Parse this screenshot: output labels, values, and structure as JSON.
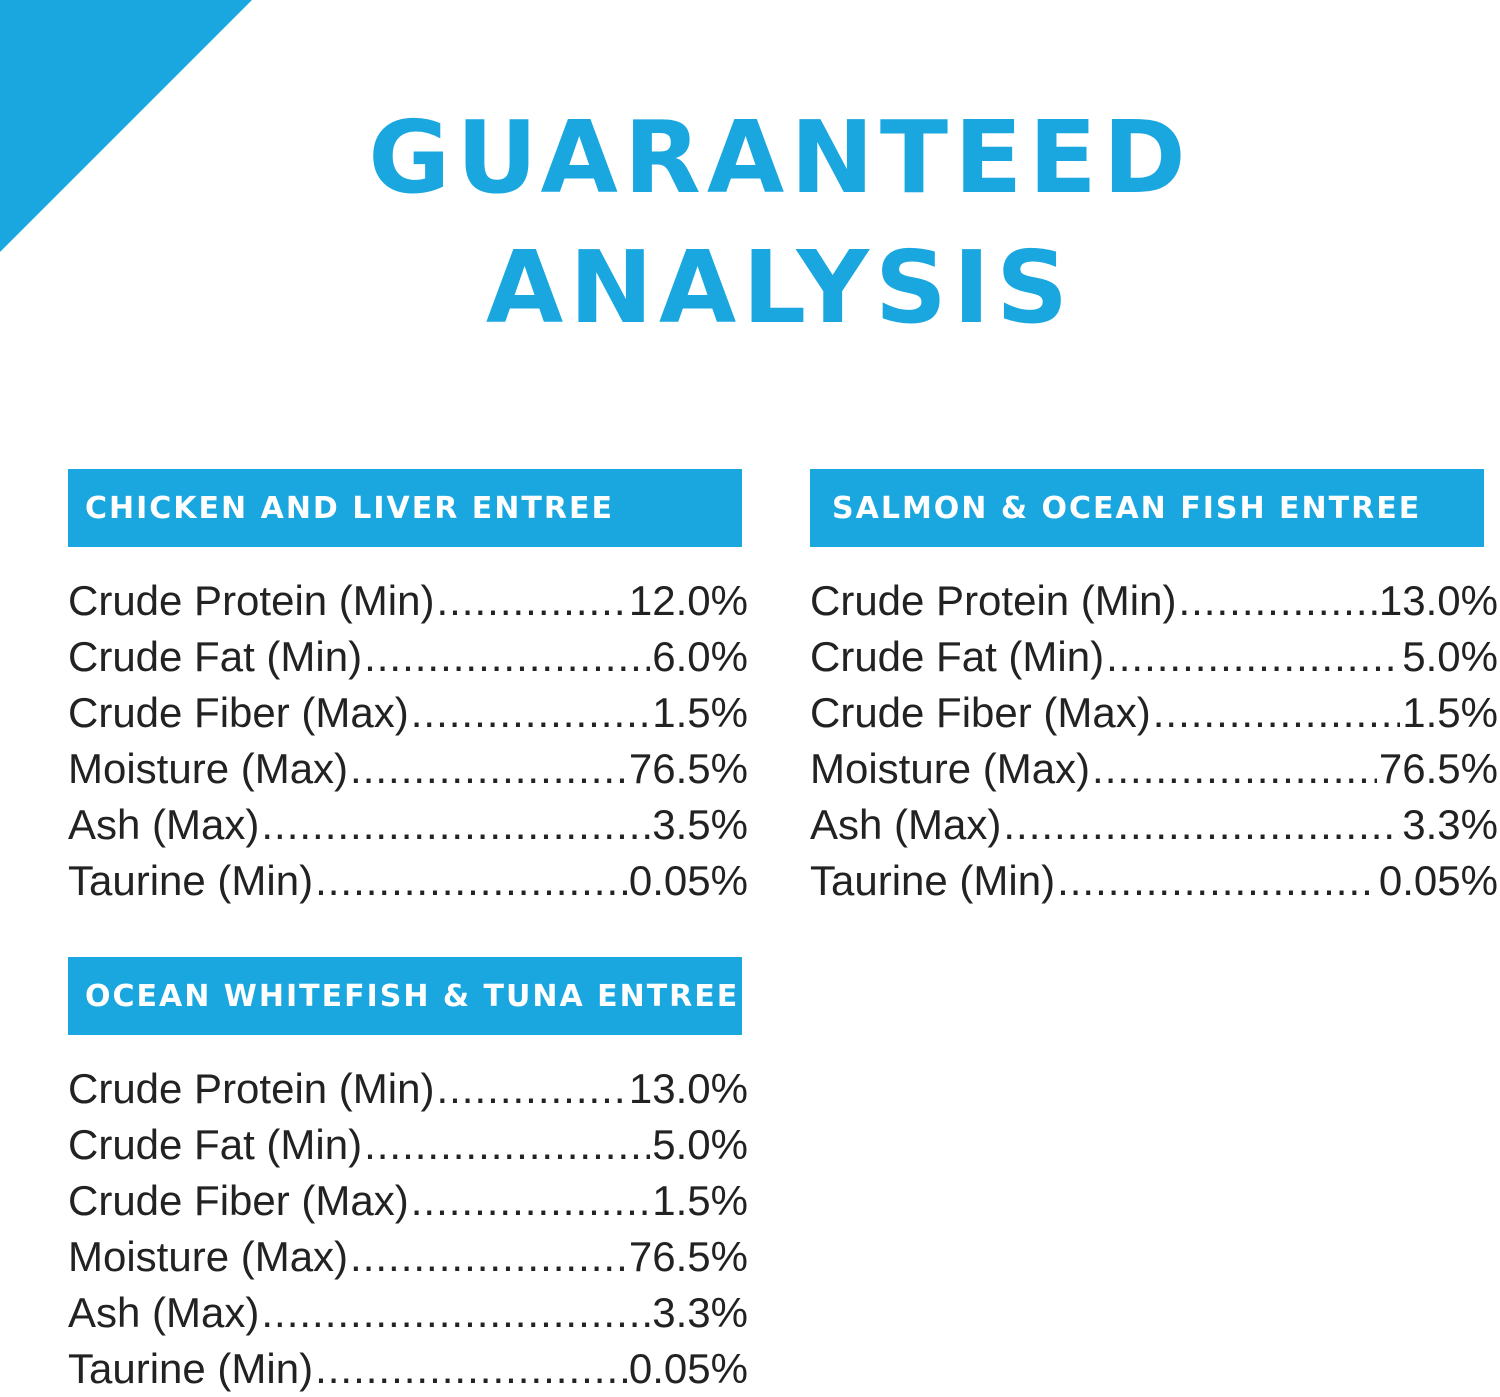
{
  "title": {
    "line1": "GUARANTEED",
    "line2": "ANALYSIS"
  },
  "sections": [
    {
      "heading": "CHICKEN AND LIVER ENTREE",
      "rows": [
        {
          "label": "Crude Protein (Min)",
          "value": "12.0%"
        },
        {
          "label": "Crude Fat (Min)",
          "value": "6.0%"
        },
        {
          "label": "Crude Fiber (Max)",
          "value": "1.5%"
        },
        {
          "label": "Moisture (Max)",
          "value": "76.5%"
        },
        {
          "label": "Ash (Max)",
          "value": "3.5%"
        },
        {
          "label": "Taurine (Min)",
          "value": "0.05%"
        }
      ]
    },
    {
      "heading": "SALMON & OCEAN FISH ENTREE",
      "rows": [
        {
          "label": "Crude Protein (Min)",
          "value": "13.0%"
        },
        {
          "label": "Crude Fat (Min)",
          "value": "5.0%"
        },
        {
          "label": "Crude Fiber (Max)",
          "value": "1.5%"
        },
        {
          "label": "Moisture (Max)",
          "value": "76.5%"
        },
        {
          "label": "Ash (Max)",
          "value": "3.3%"
        },
        {
          "label": "Taurine (Min)",
          "value": "0.05%"
        }
      ]
    },
    {
      "heading": "OCEAN WHITEFISH & TUNA ENTREE",
      "rows": [
        {
          "label": "Crude Protein (Min)",
          "value": "13.0%"
        },
        {
          "label": "Crude Fat (Min)",
          "value": "5.0%"
        },
        {
          "label": "Crude Fiber (Max)",
          "value": "1.5%"
        },
        {
          "label": "Moisture (Max)",
          "value": "76.5%"
        },
        {
          "label": "Ash (Max)",
          "value": "3.3%"
        },
        {
          "label": "Taurine (Min)",
          "value": "0.05%"
        }
      ]
    }
  ],
  "colors": {
    "accent": "#1aa7e0",
    "text": "#222222",
    "background": "#ffffff"
  }
}
